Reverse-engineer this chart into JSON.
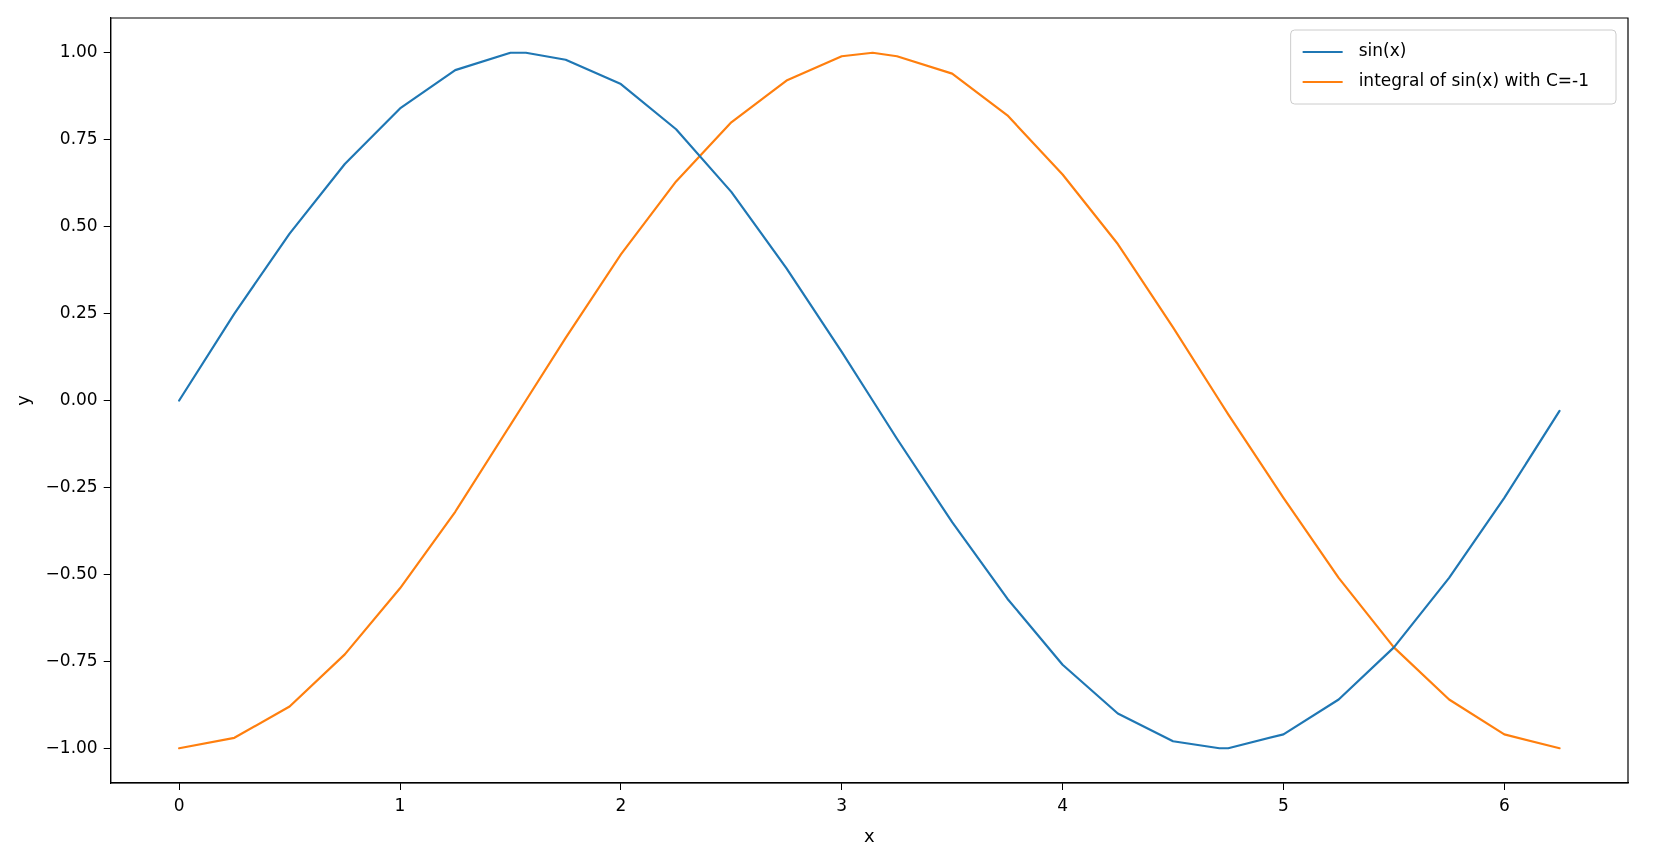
{
  "chart_data": {
    "type": "line",
    "xlabel": "x",
    "ylabel": "y",
    "x": [
      0,
      0.25,
      0.5,
      0.75,
      1,
      1.25,
      1.5,
      1.57,
      1.75,
      2,
      2.25,
      2.5,
      2.75,
      3,
      3.14,
      3.25,
      3.5,
      3.75,
      4,
      4.25,
      4.5,
      4.71,
      4.75,
      5,
      5.25,
      5.5,
      5.75,
      6,
      6.25
    ],
    "series": [
      {
        "name": "sin(x)",
        "color": "#1f77b4",
        "values": [
          0,
          0.25,
          0.48,
          0.68,
          0.84,
          0.95,
          1.0,
          1.0,
          0.98,
          0.91,
          0.78,
          0.6,
          0.38,
          0.14,
          0,
          -0.11,
          -0.35,
          -0.57,
          -0.76,
          -0.9,
          -0.98,
          -1.0,
          -1.0,
          -0.96,
          -0.86,
          -0.71,
          -0.51,
          -0.28,
          -0.03
        ]
      },
      {
        "name": "integral of sin(x) with C=-1",
        "color": "#ff7f0e",
        "values": [
          -1.0,
          -0.97,
          -0.88,
          -0.73,
          -0.54,
          -0.32,
          -0.07,
          0,
          0.18,
          0.42,
          0.63,
          0.8,
          0.92,
          0.99,
          1.0,
          0.99,
          0.94,
          0.82,
          0.65,
          0.45,
          0.21,
          0,
          -0.04,
          -0.28,
          -0.51,
          -0.71,
          -0.86,
          -0.96,
          -1.0
        ]
      }
    ],
    "xlim": [
      -0.31,
      6.56
    ],
    "ylim": [
      -1.1,
      1.1
    ],
    "xticks": [
      0,
      1,
      2,
      3,
      4,
      5,
      6
    ],
    "yticks": [
      {
        "value": -1,
        "label": "−1.00"
      },
      {
        "value": -0.75,
        "label": "−0.75"
      },
      {
        "value": -0.5,
        "label": "−0.50"
      },
      {
        "value": -0.25,
        "label": "−0.25"
      },
      {
        "value": 0,
        "label": "0.00"
      },
      {
        "value": 0.25,
        "label": "0.25"
      },
      {
        "value": 0.5,
        "label": "0.50"
      },
      {
        "value": 0.75,
        "label": "0.75"
      },
      {
        "value": 1,
        "label": "1.00"
      }
    ],
    "grid": false,
    "legend": "top right",
    "marker": "none",
    "line_style": "solid"
  }
}
